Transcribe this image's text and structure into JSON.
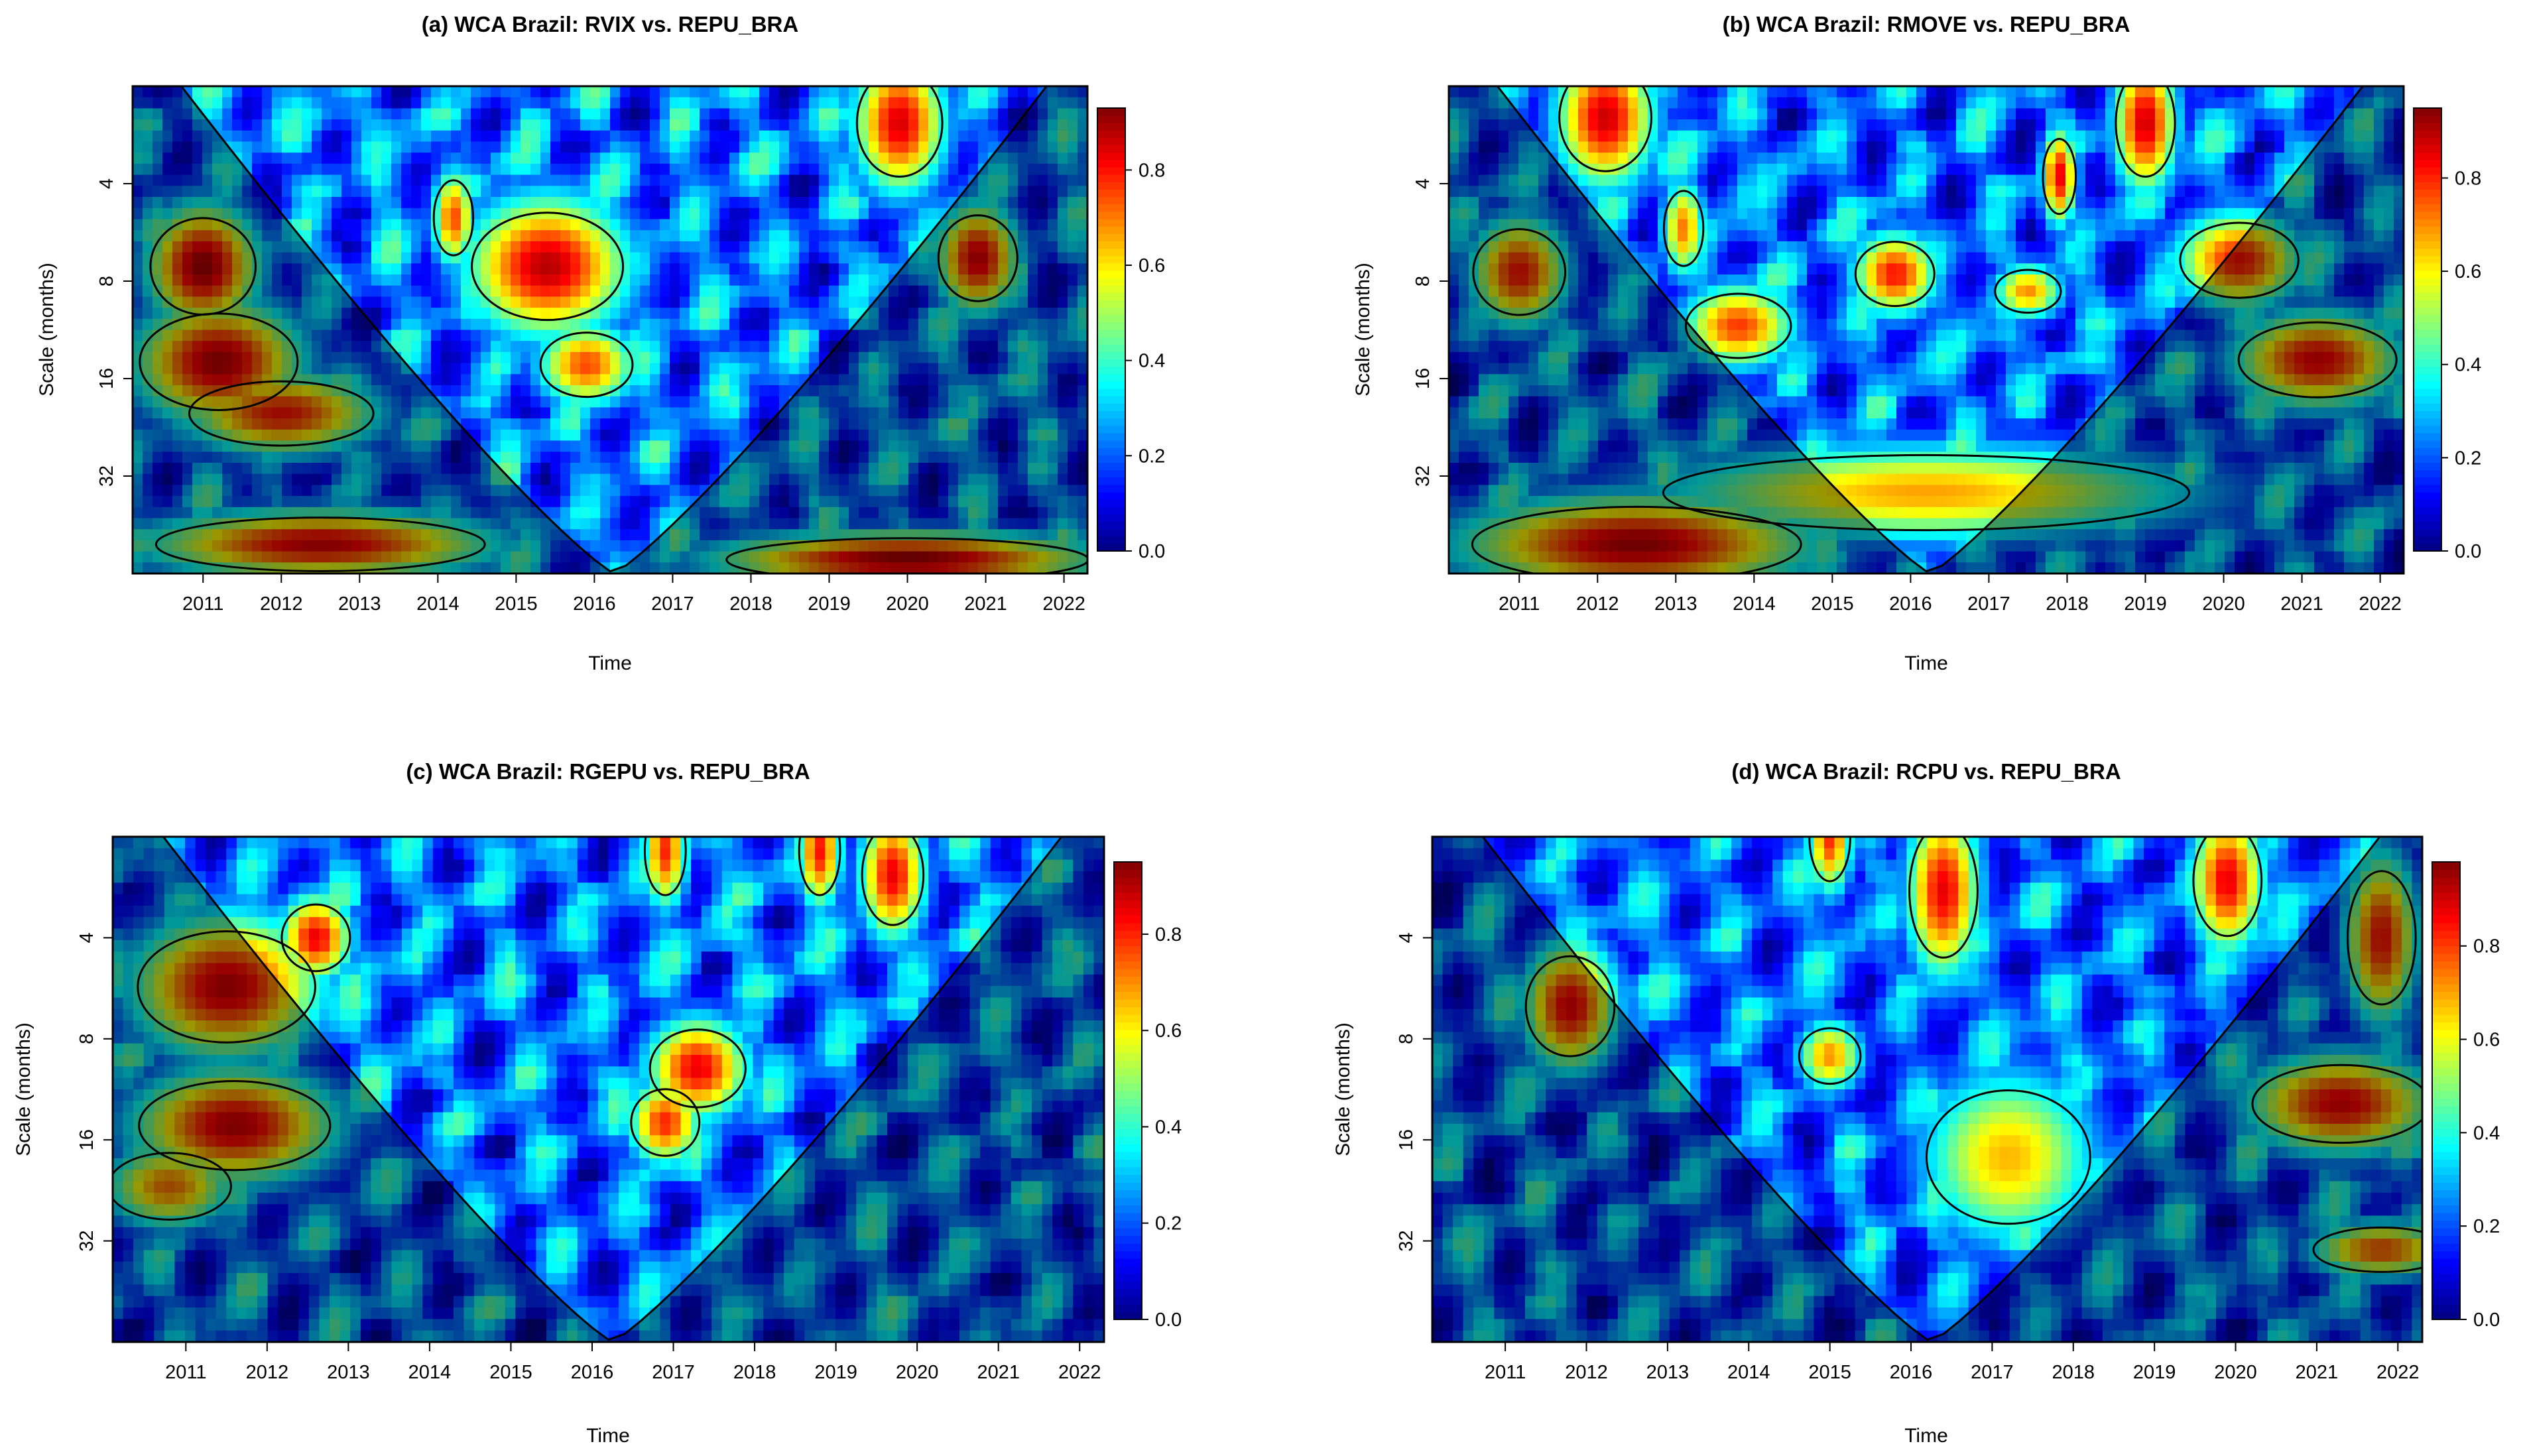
{
  "colors": {
    "colormap": [
      "#00007f",
      "#0000ff",
      "#007fff",
      "#00ffff",
      "#7fff7f",
      "#ffff00",
      "#ff7f00",
      "#ff0000",
      "#7f0000"
    ],
    "coi_shade": "#000000",
    "contour": "#000000"
  },
  "chart_data": [
    {
      "type": "heatmap",
      "title": "(a) WCA Brazil: RVIX vs. REPU_BRA",
      "xlabel": "Time",
      "ylabel": "Scale (months)",
      "x_ticks": [
        "2011",
        "2012",
        "2013",
        "2014",
        "2015",
        "2016",
        "2017",
        "2018",
        "2019",
        "2020",
        "2021",
        "2022"
      ],
      "y_ticks": [
        "4",
        "8",
        "16",
        "32"
      ],
      "colorbar_ticks": [
        "0.0",
        "0.2",
        "0.4",
        "0.6",
        "0.8"
      ],
      "x_range": [
        2010.1,
        2022.3
      ],
      "y_range_months": [
        2,
        64
      ],
      "color_range": [
        0,
        0.93
      ],
      "log_scale_y": true,
      "cone_of_influence": true,
      "significant_regions": [
        {
          "x": 2011.0,
          "period": 7.2,
          "w": 1.6,
          "h": 0.45,
          "v": 0.9
        },
        {
          "x": 2015.4,
          "period": 7.2,
          "w": 2.3,
          "h": 0.5,
          "v": 0.88
        },
        {
          "x": 2019.9,
          "period": 2.6,
          "w": 1.3,
          "h": 0.5,
          "v": 0.85
        },
        {
          "x": 2020.9,
          "period": 6.8,
          "w": 1.2,
          "h": 0.4,
          "v": 0.85
        },
        {
          "x": 2014.2,
          "period": 5.1,
          "w": 0.6,
          "h": 0.35,
          "v": 0.75
        },
        {
          "x": 2015.9,
          "period": 14.5,
          "w": 1.4,
          "h": 0.3,
          "v": 0.75
        },
        {
          "x": 2011.2,
          "period": 14.2,
          "w": 2.4,
          "h": 0.45,
          "v": 0.88
        },
        {
          "x": 2012.0,
          "period": 20.5,
          "w": 2.8,
          "h": 0.3,
          "v": 0.8
        },
        {
          "x": 2012.5,
          "period": 52,
          "w": 5,
          "h": 0.25,
          "v": 0.85
        },
        {
          "x": 2020.0,
          "period": 58,
          "w": 5.5,
          "h": 0.2,
          "v": 0.9
        }
      ]
    },
    {
      "type": "heatmap",
      "title": "(b) WCA Brazil: RMOVE vs. REPU_BRA",
      "xlabel": "Time",
      "ylabel": "Scale (months)",
      "x_ticks": [
        "2011",
        "2012",
        "2013",
        "2014",
        "2015",
        "2016",
        "2017",
        "2018",
        "2019",
        "2020",
        "2021",
        "2022"
      ],
      "y_ticks": [
        "4",
        "8",
        "16",
        "32"
      ],
      "colorbar_ticks": [
        "0.0",
        "0.2",
        "0.4",
        "0.6",
        "0.8"
      ],
      "x_range": [
        2010.1,
        2022.3
      ],
      "y_range_months": [
        2,
        64
      ],
      "color_range": [
        0,
        0.95
      ],
      "log_scale_y": true,
      "cone_of_influence": true,
      "significant_regions": [
        {
          "x": 2012.1,
          "period": 2.5,
          "w": 1.4,
          "h": 0.5,
          "v": 0.88
        },
        {
          "x": 2019.0,
          "period": 2.6,
          "w": 0.9,
          "h": 0.5,
          "v": 0.88
        },
        {
          "x": 2017.9,
          "period": 3.8,
          "w": 0.5,
          "h": 0.35,
          "v": 0.85
        },
        {
          "x": 2013.1,
          "period": 5.5,
          "w": 0.6,
          "h": 0.35,
          "v": 0.72
        },
        {
          "x": 2015.8,
          "period": 7.6,
          "w": 1.2,
          "h": 0.3,
          "v": 0.82
        },
        {
          "x": 2020.2,
          "period": 6.9,
          "w": 1.8,
          "h": 0.35,
          "v": 0.82
        },
        {
          "x": 2013.8,
          "period": 11.0,
          "w": 1.6,
          "h": 0.3,
          "v": 0.78
        },
        {
          "x": 2017.5,
          "period": 8.6,
          "w": 1.0,
          "h": 0.2,
          "v": 0.7
        },
        {
          "x": 2021.2,
          "period": 14.0,
          "w": 2.4,
          "h": 0.35,
          "v": 0.85
        },
        {
          "x": 2011.0,
          "period": 7.5,
          "w": 1.4,
          "h": 0.4,
          "v": 0.82
        },
        {
          "x": 2016.2,
          "period": 36,
          "w": 8,
          "h": 0.35,
          "v": 0.68
        },
        {
          "x": 2012.5,
          "period": 52,
          "w": 5,
          "h": 0.35,
          "v": 0.9
        }
      ]
    },
    {
      "type": "heatmap",
      "title": "(c) WCA Brazil: RGEPU vs. REPU_BRA",
      "xlabel": "Time",
      "ylabel": "Scale (months)",
      "x_ticks": [
        "2011",
        "2012",
        "2013",
        "2014",
        "2015",
        "2016",
        "2017",
        "2018",
        "2019",
        "2020",
        "2021",
        "2022"
      ],
      "y_ticks": [
        "4",
        "8",
        "16",
        "32"
      ],
      "colorbar_ticks": [
        "0.0",
        "0.2",
        "0.4",
        "0.6",
        "0.8"
      ],
      "x_range": [
        2010.1,
        2022.3
      ],
      "y_range_months": [
        2,
        64
      ],
      "color_range": [
        0,
        0.95
      ],
      "log_scale_y": true,
      "cone_of_influence": true,
      "significant_regions": [
        {
          "x": 2011.5,
          "period": 5.6,
          "w": 2.6,
          "h": 0.5,
          "v": 0.88
        },
        {
          "x": 2012.6,
          "period": 4.0,
          "w": 1.0,
          "h": 0.3,
          "v": 0.85
        },
        {
          "x": 2011.6,
          "period": 14.5,
          "w": 2.8,
          "h": 0.4,
          "v": 0.88
        },
        {
          "x": 2017.3,
          "period": 9.8,
          "w": 1.4,
          "h": 0.35,
          "v": 0.85
        },
        {
          "x": 2016.9,
          "period": 14.2,
          "w": 1.0,
          "h": 0.3,
          "v": 0.8
        },
        {
          "x": 2019.7,
          "period": 2.6,
          "w": 0.9,
          "h": 0.45,
          "v": 0.85
        },
        {
          "x": 2018.8,
          "period": 2.2,
          "w": 0.6,
          "h": 0.4,
          "v": 0.82
        },
        {
          "x": 2016.9,
          "period": 2.2,
          "w": 0.6,
          "h": 0.4,
          "v": 0.8
        },
        {
          "x": 2010.8,
          "period": 22,
          "w": 1.8,
          "h": 0.3,
          "v": 0.72
        }
      ]
    },
    {
      "type": "heatmap",
      "title": "(d) WCA Brazil: RCPU vs. REPU_BRA",
      "xlabel": "Time",
      "ylabel": "Scale (months)",
      "x_ticks": [
        "2011",
        "2012",
        "2013",
        "2014",
        "2015",
        "2016",
        "2017",
        "2018",
        "2019",
        "2020",
        "2021",
        "2022"
      ],
      "y_ticks": [
        "4",
        "8",
        "16",
        "32"
      ],
      "colorbar_ticks": [
        "0.0",
        "0.2",
        "0.4",
        "0.6",
        "0.8"
      ],
      "x_range": [
        2010.1,
        2022.3
      ],
      "y_range_months": [
        2,
        64
      ],
      "color_range": [
        0,
        0.98
      ],
      "log_scale_y": true,
      "cone_of_influence": true,
      "significant_regions": [
        {
          "x": 2011.8,
          "period": 6.4,
          "w": 1.3,
          "h": 0.45,
          "v": 0.88
        },
        {
          "x": 2016.4,
          "period": 2.9,
          "w": 1.0,
          "h": 0.6,
          "v": 0.88
        },
        {
          "x": 2019.9,
          "period": 2.7,
          "w": 1.0,
          "h": 0.5,
          "v": 0.88
        },
        {
          "x": 2015.0,
          "period": 2.0,
          "w": 0.6,
          "h": 0.4,
          "v": 0.82
        },
        {
          "x": 2021.3,
          "period": 12.5,
          "w": 2.6,
          "h": 0.35,
          "v": 0.88
        },
        {
          "x": 2017.2,
          "period": 18,
          "w": 2.4,
          "h": 0.6,
          "v": 0.68
        },
        {
          "x": 2015.0,
          "period": 9.0,
          "w": 0.9,
          "h": 0.25,
          "v": 0.72
        },
        {
          "x": 2021.8,
          "period": 4.0,
          "w": 1.0,
          "h": 0.6,
          "v": 0.85
        },
        {
          "x": 2021.8,
          "period": 34,
          "w": 2.0,
          "h": 0.2,
          "v": 0.78
        }
      ]
    }
  ]
}
